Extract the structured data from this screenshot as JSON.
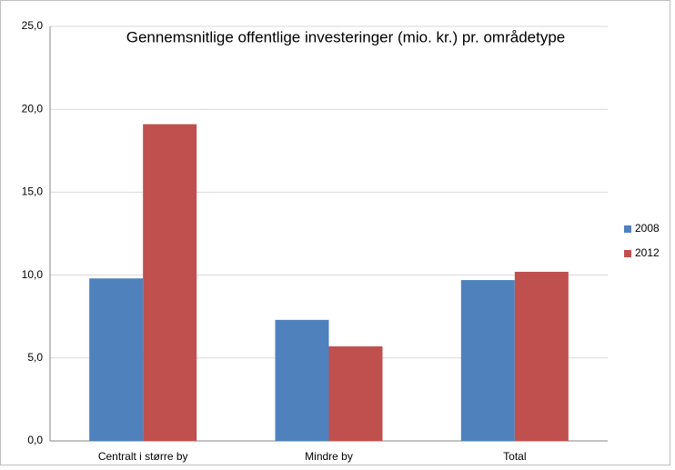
{
  "chart_data": {
    "type": "bar",
    "title": "Gennemsnitlige offentlige investeringer (mio. kr.) pr. områdetype",
    "categories": [
      "Centralt i større by",
      "Mindre by",
      "Total"
    ],
    "series": [
      {
        "name": "2008",
        "color": "#4f81bd",
        "values": [
          9.8,
          7.3,
          9.7
        ]
      },
      {
        "name": "2012",
        "color": "#c0504d",
        "values": [
          19.1,
          5.7,
          10.2
        ]
      }
    ],
    "ylim": [
      0,
      25
    ],
    "yticks": [
      {
        "value": 0,
        "label": "0,0"
      },
      {
        "value": 5,
        "label": "5,0"
      },
      {
        "value": 10,
        "label": "10,0"
      },
      {
        "value": 15,
        "label": "15,0"
      },
      {
        "value": 20,
        "label": "20,0"
      },
      {
        "value": 25,
        "label": "25,0"
      }
    ],
    "grid": true,
    "legend": "right"
  }
}
